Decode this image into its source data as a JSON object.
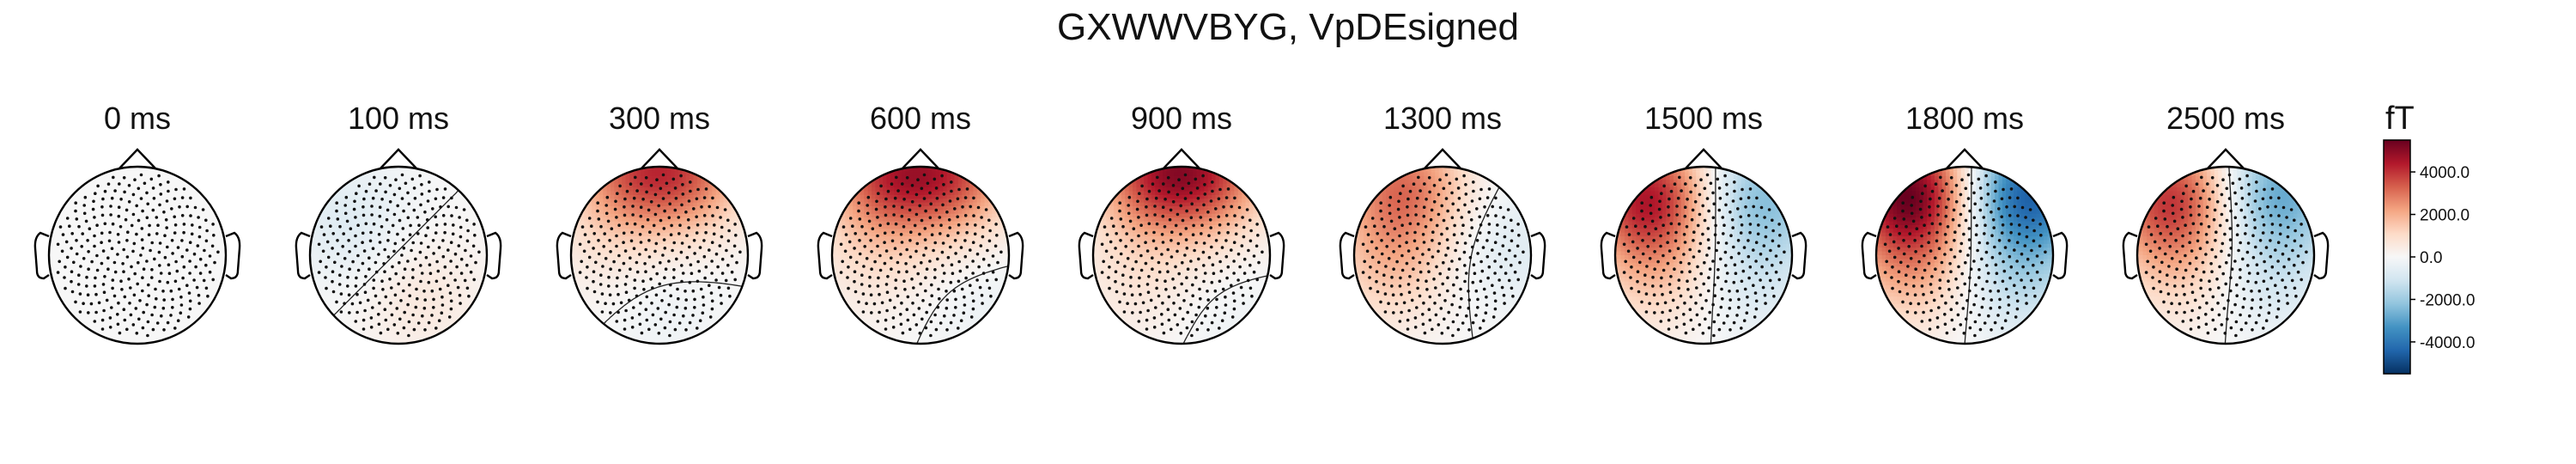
{
  "chart_data": {
    "type": "heatmap",
    "title": "GXWWVBYG, VpDEsigned",
    "unit": "fT",
    "colormap": "RdBu_r",
    "vlim": [
      -5500,
      5500
    ],
    "colorbar": {
      "ticks": [
        4000,
        2000,
        0,
        -2000,
        -4000
      ],
      "tick_labels": [
        "4000.0",
        "2000.0",
        "0.0",
        "-2000.0",
        "-4000.0"
      ]
    },
    "times": [
      "0 ms",
      "100 ms",
      "300 ms",
      "600 ms",
      "900 ms",
      "1300 ms",
      "1500 ms",
      "1800 ms",
      "2500 ms"
    ],
    "maps": [
      {
        "time": "0 ms",
        "sources": []
      },
      {
        "time": "100 ms",
        "sources": [
          {
            "x": -0.55,
            "y": 0.35,
            "amp": -700
          },
          {
            "x": 0.25,
            "y": -0.45,
            "amp": 600
          }
        ]
      },
      {
        "time": "300 ms",
        "sources": [
          {
            "x": -0.33,
            "y": 0.95,
            "amp": 2600
          },
          {
            "x": 0.33,
            "y": 0.95,
            "amp": 2600
          },
          {
            "x": 0.0,
            "y": -0.55,
            "amp": -300
          },
          {
            "x": -0.65,
            "y": 0.05,
            "amp": 450
          }
        ]
      },
      {
        "time": "600 ms",
        "sources": [
          {
            "x": -0.38,
            "y": 0.92,
            "amp": 3300
          },
          {
            "x": 0.38,
            "y": 0.92,
            "amp": 3000
          },
          {
            "x": -0.55,
            "y": -0.05,
            "amp": 650
          },
          {
            "x": 0.7,
            "y": -0.55,
            "amp": -300
          }
        ]
      },
      {
        "time": "900 ms",
        "sources": [
          {
            "x": -0.32,
            "y": 0.93,
            "amp": 3200
          },
          {
            "x": 0.32,
            "y": 0.93,
            "amp": 3000
          },
          {
            "x": -0.5,
            "y": -0.25,
            "amp": 650
          },
          {
            "x": 0.55,
            "y": -0.75,
            "amp": -250
          }
        ]
      },
      {
        "time": "1300 ms",
        "sources": [
          {
            "x": -0.45,
            "y": 0.78,
            "amp": 2900
          },
          {
            "x": -0.6,
            "y": -0.1,
            "amp": 1400
          },
          {
            "x": 0.72,
            "y": 0.1,
            "amp": -700
          }
        ]
      },
      {
        "time": "1500 ms",
        "sources": [
          {
            "x": -0.62,
            "y": 0.66,
            "amp": 4300
          },
          {
            "x": 0.64,
            "y": 0.66,
            "amp": -2300
          },
          {
            "x": -0.55,
            "y": -0.2,
            "amp": 1200
          },
          {
            "x": 0.6,
            "y": -0.25,
            "amp": -800
          }
        ]
      },
      {
        "time": "1800 ms",
        "sources": [
          {
            "x": -0.62,
            "y": 0.72,
            "amp": 5200
          },
          {
            "x": 0.7,
            "y": 0.7,
            "amp": -4400
          },
          {
            "x": -0.6,
            "y": -0.15,
            "amp": 1700
          },
          {
            "x": 0.62,
            "y": -0.25,
            "amp": -1300
          }
        ]
      },
      {
        "time": "2500 ms",
        "sources": [
          {
            "x": -0.6,
            "y": 0.65,
            "amp": 3800
          },
          {
            "x": 0.58,
            "y": 0.72,
            "amp": -2800
          },
          {
            "x": -0.55,
            "y": -0.15,
            "amp": 1000
          },
          {
            "x": 0.55,
            "y": -0.2,
            "amp": -900
          }
        ]
      }
    ]
  }
}
